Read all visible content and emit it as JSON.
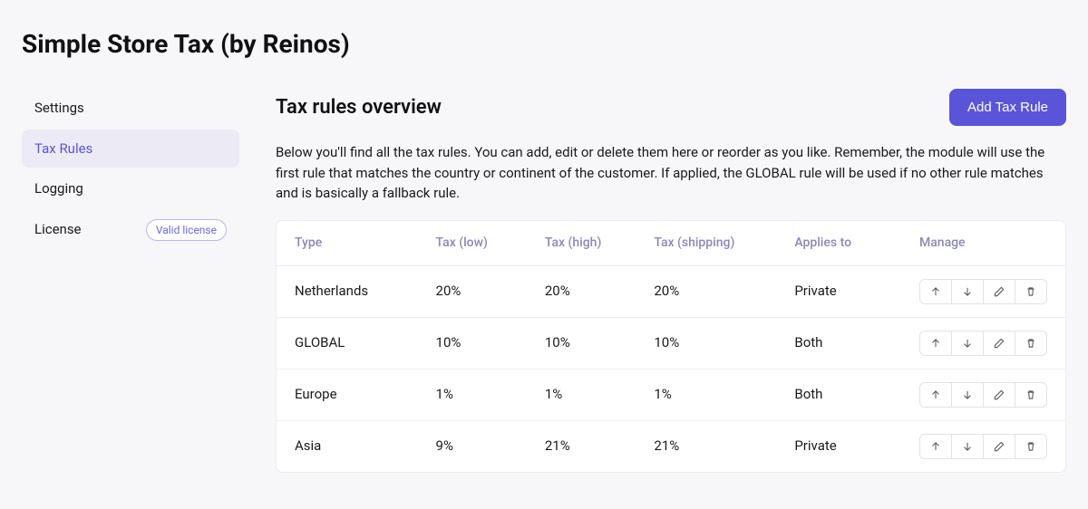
{
  "page": {
    "title": "Simple Store Tax (by Reinos)"
  },
  "sidebar": {
    "items": [
      {
        "label": "Settings",
        "active": false
      },
      {
        "label": "Tax Rules",
        "active": true
      },
      {
        "label": "Logging",
        "active": false
      },
      {
        "label": "License",
        "active": false,
        "badge": "Valid license"
      }
    ]
  },
  "main": {
    "section_title": "Tax rules overview",
    "add_button": "Add Tax Rule",
    "description": "Below you'll find all the tax rules. You can add, edit or delete them here or reorder as you like. Remember, the module will use the first rule that matches the country or continent of the customer. If applied, the GLOBAL rule will be used if no other rule matches and is basically a fallback rule."
  },
  "table": {
    "columns": [
      "Type",
      "Tax (low)",
      "Tax (high)",
      "Tax (shipping)",
      "Applies to",
      "Manage"
    ],
    "rows": [
      {
        "type": "Netherlands",
        "tax_low": "20%",
        "tax_high": "20%",
        "tax_shipping": "20%",
        "applies_to": "Private"
      },
      {
        "type": "GLOBAL",
        "tax_low": "10%",
        "tax_high": "10%",
        "tax_shipping": "10%",
        "applies_to": "Both"
      },
      {
        "type": "Europe",
        "tax_low": "1%",
        "tax_high": "1%",
        "tax_shipping": "1%",
        "applies_to": "Both"
      },
      {
        "type": "Asia",
        "tax_low": "9%",
        "tax_high": "21%",
        "tax_shipping": "21%",
        "applies_to": "Private"
      }
    ]
  },
  "colors": {
    "accent": "#5a55d8",
    "sidebar_active_bg": "#eceaf5",
    "header_text": "#8c88b8",
    "border": "#eceaf0",
    "page_bg": "#f7f7fa"
  }
}
